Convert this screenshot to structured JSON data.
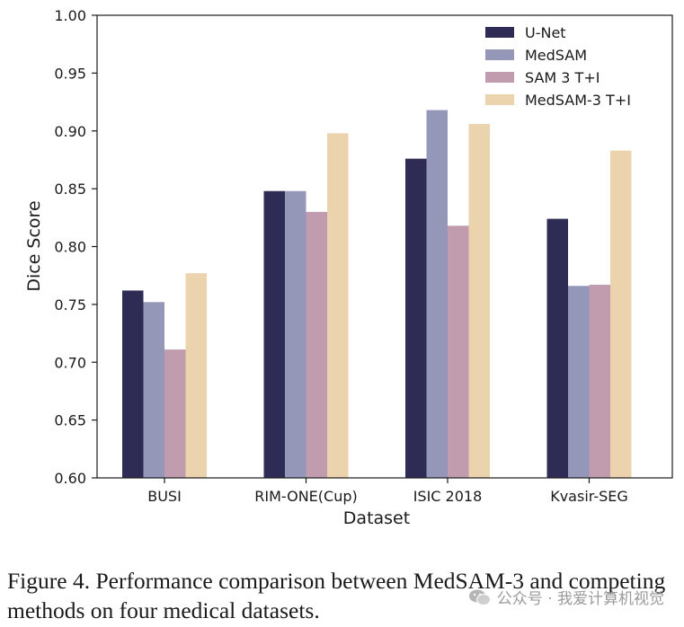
{
  "chart_data": {
    "type": "bar",
    "title": "",
    "xlabel": "Dataset",
    "ylabel": "Dice Score",
    "ylim": [
      0.6,
      1.0
    ],
    "yticks": [
      "0.60",
      "0.65",
      "0.70",
      "0.75",
      "0.80",
      "0.85",
      "0.90",
      "0.95",
      "1.00"
    ],
    "categories": [
      "BUSI",
      "RIM-ONE(Cup)",
      "ISIC 2018",
      "Kvasir-SEG"
    ],
    "legend_position": "top-right",
    "series": [
      {
        "name": "U-Net",
        "color": "#2e2b55",
        "values": [
          0.762,
          0.848,
          0.876,
          0.824
        ]
      },
      {
        "name": "MedSAM",
        "color": "#9497b8",
        "values": [
          0.752,
          0.848,
          0.918,
          0.766
        ]
      },
      {
        "name": "SAM 3 T+I",
        "color": "#c19bae",
        "values": [
          0.711,
          0.83,
          0.818,
          0.767
        ]
      },
      {
        "name": "MedSAM-3 T+I",
        "color": "#ebd3ae",
        "values": [
          0.777,
          0.898,
          0.906,
          0.883
        ]
      }
    ]
  },
  "caption": {
    "text": "Figure 4. Performance comparison between MedSAM-3 and competing methods on four medical datasets."
  },
  "watermark": {
    "text": "公众号 · 我爱计算机视觉",
    "icon": "wechat-icon"
  }
}
